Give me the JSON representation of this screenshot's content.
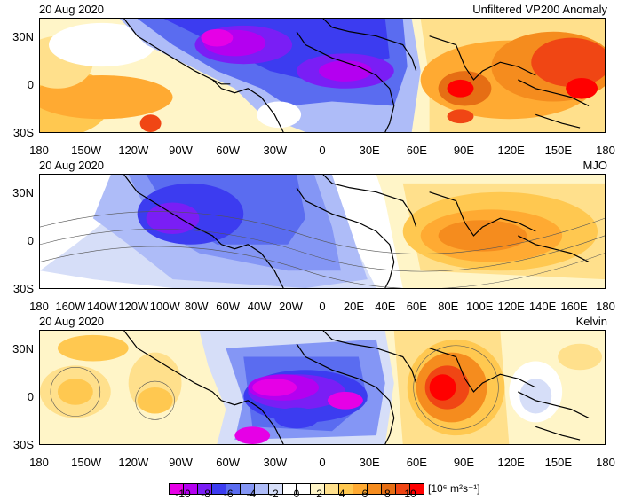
{
  "panels": [
    {
      "date": "20 Aug 2020",
      "title": "Unfiltered VP200 Anomaly",
      "lat_labels": [
        "30N",
        "0",
        "30S"
      ],
      "lon_labels": [
        "180",
        "150W",
        "120W",
        "90W",
        "60W",
        "30W",
        "0",
        "30E",
        "60E",
        "90E",
        "120E",
        "150E",
        "180"
      ],
      "field": "unfiltered"
    },
    {
      "date": "20 Aug 2020",
      "title": "MJO",
      "lat_labels": [
        "30N",
        "0",
        "30S"
      ],
      "lon_labels": [
        "180",
        "160W",
        "140W",
        "120W",
        "100W",
        "80W",
        "60W",
        "40W",
        "20W",
        "0",
        "20E",
        "40E",
        "60E",
        "80E",
        "100E",
        "120E",
        "140E",
        "160E",
        "180"
      ],
      "field": "mjo"
    },
    {
      "date": "20 Aug 2020",
      "title": "Kelvin",
      "lat_labels": [
        "30N",
        "0",
        "30S"
      ],
      "lon_labels": [
        "180",
        "150W",
        "120W",
        "90W",
        "60W",
        "30W",
        "0",
        "30E",
        "60E",
        "90E",
        "120E",
        "150E",
        "180"
      ],
      "field": "kelvin"
    }
  ],
  "colorbar": {
    "labels": [
      "-10",
      "-8",
      "-6",
      "-4",
      "-2",
      "0",
      "2",
      "4",
      "6",
      "8",
      "10"
    ],
    "colors": [
      "#e600e6",
      "#b400f0",
      "#7a1ef5",
      "#3c3cf0",
      "#5a6cf0",
      "#8496f5",
      "#aebcf8",
      "#d6def8",
      "#ffffff",
      "#ffffff",
      "#fff5c8",
      "#ffe08c",
      "#ffc850",
      "#ffaa32",
      "#f58c1e",
      "#e66e14",
      "#f04614",
      "#ff0000"
    ],
    "units": "[10⁶ m²s⁻¹]"
  }
}
